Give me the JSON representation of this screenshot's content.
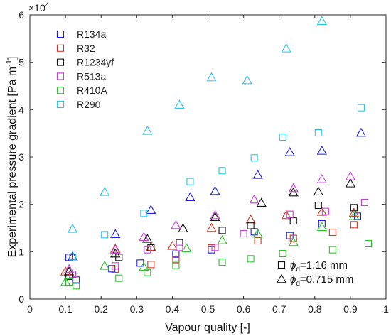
{
  "chart_data": {
    "type": "scatter",
    "title": "",
    "xlabel": "Vapour quality [-]",
    "ylabel": "Experimental pressure gradient [Pa  m",
    "ylabel_sup": "-1",
    "ylabel_close": "]",
    "multiplier": "×10",
    "multiplier_exp": "4",
    "xlim": [
      0,
      1
    ],
    "ylim": [
      0,
      60000
    ],
    "xticks": [
      "0",
      "0.1",
      "0.2",
      "0.3",
      "0.4",
      "0.5",
      "0.6",
      "0.7",
      "0.8",
      "0.9",
      "1"
    ],
    "yticks": [
      "0",
      "1",
      "2",
      "3",
      "4",
      "5",
      "6"
    ],
    "legend_position": "top-left",
    "marker_legend": [
      {
        "shape": "square",
        "symbol": "ϕ",
        "sub": "d",
        "text": "=1.16 mm"
      },
      {
        "shape": "triangle",
        "symbol": "ϕ",
        "sub": "d",
        "text": "=0.715 mm"
      }
    ],
    "series": [
      {
        "name": "R134a",
        "color": "#1f1fd6",
        "square": [
          [
            0.11,
            8800
          ],
          [
            0.13,
            4000
          ],
          [
            0.23,
            6400
          ],
          [
            0.31,
            7600
          ],
          [
            0.41,
            9500
          ],
          [
            0.51,
            10400
          ],
          [
            0.63,
            14200
          ],
          [
            0.73,
            13400
          ],
          [
            0.82,
            15900
          ],
          [
            0.92,
            17500
          ]
        ],
        "triangle": [
          [
            0.12,
            9000
          ],
          [
            0.24,
            13700
          ],
          [
            0.34,
            18800
          ],
          [
            0.45,
            21500
          ],
          [
            0.52,
            22800
          ],
          [
            0.64,
            26200
          ],
          [
            0.73,
            31000
          ],
          [
            0.82,
            31300
          ],
          [
            0.93,
            35100
          ]
        ]
      },
      {
        "name": "R32",
        "color": "#d03a2a",
        "square": [
          [
            0.11,
            4500
          ],
          [
            0.24,
            6300
          ],
          [
            0.34,
            7300
          ],
          [
            0.41,
            8300
          ],
          [
            0.51,
            10800
          ],
          [
            0.64,
            12300
          ],
          [
            0.74,
            12800
          ],
          [
            0.85,
            14100
          ],
          [
            0.91,
            15700
          ]
        ],
        "triangle": [
          [
            0.1,
            5800
          ],
          [
            0.24,
            10600
          ],
          [
            0.34,
            11000
          ],
          [
            0.4,
            11200
          ],
          [
            0.51,
            15000
          ],
          [
            0.62,
            16800
          ],
          [
            0.72,
            17700
          ],
          [
            0.82,
            18400
          ],
          [
            0.91,
            18200
          ]
        ]
      },
      {
        "name": "R1234yf",
        "color": "#111111",
        "square": [
          [
            0.11,
            4800
          ],
          [
            0.25,
            8800
          ],
          [
            0.34,
            10800
          ],
          [
            0.42,
            11900
          ],
          [
            0.54,
            14500
          ],
          [
            0.62,
            15500
          ],
          [
            0.74,
            16500
          ],
          [
            0.81,
            19800
          ],
          [
            0.91,
            19300
          ]
        ],
        "triangle": [
          [
            0.11,
            5800
          ],
          [
            0.24,
            9600
          ],
          [
            0.33,
            12700
          ],
          [
            0.43,
            14900
          ],
          [
            0.52,
            17300
          ],
          [
            0.65,
            20300
          ],
          [
            0.74,
            22500
          ],
          [
            0.81,
            22700
          ],
          [
            0.9,
            24400
          ]
        ]
      },
      {
        "name": "R513a",
        "color": "#c43fd6",
        "square": [
          [
            0.12,
            5200
          ],
          [
            0.24,
            7000
          ],
          [
            0.33,
            10400
          ],
          [
            0.42,
            10900
          ],
          [
            0.52,
            10900
          ],
          [
            0.6,
            13800
          ],
          [
            0.73,
            17900
          ],
          [
            0.83,
            18500
          ],
          [
            0.94,
            20400
          ]
        ],
        "triangle": [
          [
            0.11,
            6300
          ],
          [
            0.24,
            10400
          ],
          [
            0.32,
            13100
          ],
          [
            0.41,
            15600
          ],
          [
            0.52,
            17700
          ],
          [
            0.63,
            21000
          ],
          [
            0.74,
            23400
          ],
          [
            0.82,
            25300
          ],
          [
            0.9,
            25900
          ]
        ]
      },
      {
        "name": "R410A",
        "color": "#2fc02f",
        "square": [
          [
            0.11,
            3600
          ],
          [
            0.13,
            2800
          ],
          [
            0.25,
            4400
          ],
          [
            0.33,
            5600
          ],
          [
            0.41,
            7100
          ],
          [
            0.54,
            7800
          ],
          [
            0.62,
            8500
          ],
          [
            0.71,
            9600
          ],
          [
            0.85,
            10400
          ],
          [
            0.95,
            11700
          ]
        ],
        "triangle": [
          [
            0.1,
            3600
          ],
          [
            0.21,
            7000
          ],
          [
            0.32,
            6800
          ],
          [
            0.44,
            10700
          ],
          [
            0.54,
            12400
          ],
          [
            0.64,
            13800
          ],
          [
            0.74,
            12000
          ],
          [
            0.82,
            15200
          ],
          [
            0.91,
            17500
          ]
        ]
      },
      {
        "name": "R290",
        "color": "#28c8e8",
        "square": [
          [
            0.12,
            8900
          ],
          [
            0.21,
            13600
          ],
          [
            0.32,
            18100
          ],
          [
            0.45,
            24800
          ],
          [
            0.54,
            27100
          ],
          [
            0.63,
            29800
          ],
          [
            0.71,
            34200
          ],
          [
            0.81,
            35100
          ],
          [
            0.93,
            40400
          ]
        ],
        "triangle": [
          [
            0.12,
            14800
          ],
          [
            0.21,
            22600
          ],
          [
            0.33,
            35500
          ],
          [
            0.42,
            41000
          ],
          [
            0.51,
            46800
          ],
          [
            0.61,
            46200
          ],
          [
            0.72,
            52900
          ],
          [
            0.82,
            58700
          ]
        ]
      }
    ]
  }
}
